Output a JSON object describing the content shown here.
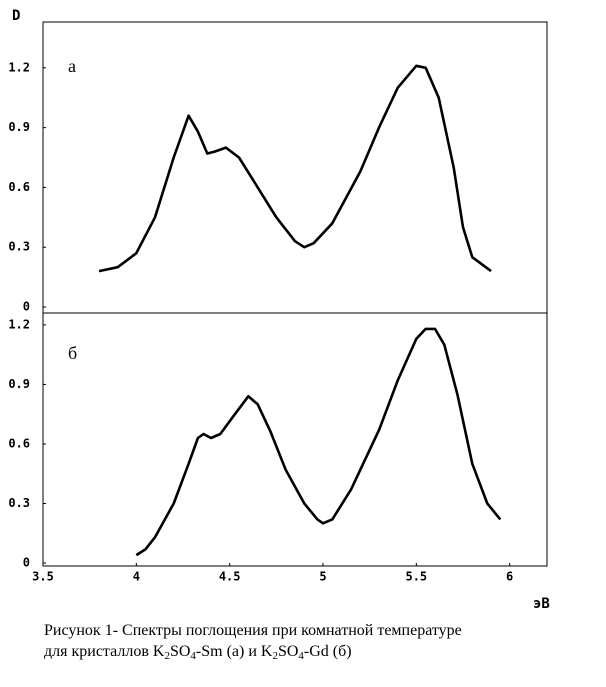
{
  "chart_data": [
    {
      "type": "line",
      "ylabel": "D",
      "label": "а",
      "color": "#000000",
      "x": [
        3.8,
        3.9,
        4.0,
        4.1,
        4.2,
        4.28,
        4.33,
        4.38,
        4.42,
        4.48,
        4.55,
        4.65,
        4.75,
        4.85,
        4.9,
        4.95,
        5.05,
        5.2,
        5.3,
        5.4,
        5.5,
        5.55,
        5.62,
        5.7,
        5.75,
        5.8,
        5.9
      ],
      "values": [
        0.18,
        0.2,
        0.27,
        0.45,
        0.75,
        0.96,
        0.88,
        0.77,
        0.78,
        0.8,
        0.75,
        0.6,
        0.45,
        0.33,
        0.3,
        0.32,
        0.42,
        0.68,
        0.9,
        1.1,
        1.21,
        1.2,
        1.05,
        0.7,
        0.4,
        0.25,
        0.18
      ],
      "xlim": [
        3.5,
        6.2
      ],
      "ylim": [
        -0.03,
        1.43
      ],
      "yticks": [
        0,
        0.3,
        0.6,
        0.9,
        1.2
      ]
    },
    {
      "type": "line",
      "xlabel": "эВ",
      "label": "б",
      "color": "#000000",
      "x": [
        4.0,
        4.05,
        4.1,
        4.2,
        4.28,
        4.33,
        4.36,
        4.4,
        4.45,
        4.52,
        4.6,
        4.65,
        4.72,
        4.8,
        4.9,
        4.97,
        5.0,
        5.05,
        5.15,
        5.3,
        5.4,
        5.5,
        5.55,
        5.6,
        5.65,
        5.72,
        5.8,
        5.88,
        5.95
      ],
      "values": [
        0.04,
        0.07,
        0.13,
        0.3,
        0.5,
        0.63,
        0.65,
        0.63,
        0.65,
        0.74,
        0.84,
        0.8,
        0.66,
        0.47,
        0.3,
        0.22,
        0.2,
        0.22,
        0.37,
        0.67,
        0.92,
        1.13,
        1.18,
        1.18,
        1.1,
        0.85,
        0.5,
        0.3,
        0.22
      ],
      "xlim": [
        3.5,
        6.2
      ],
      "ylim": [
        -0.015,
        1.26
      ],
      "yticks": [
        0,
        0.3,
        0.6,
        0.9,
        1.2
      ],
      "xticks": [
        3.5,
        4,
        4.5,
        5,
        5.5,
        6
      ]
    }
  ],
  "caption": {
    "line1": "Рисунок 1- Спектры поглощения при комнатной температуре",
    "line2": [
      "для кристаллов K",
      "2",
      "SO",
      "4",
      "-Sm (а) и K",
      "2",
      "SO",
      "4",
      "-Gd (б)"
    ]
  }
}
